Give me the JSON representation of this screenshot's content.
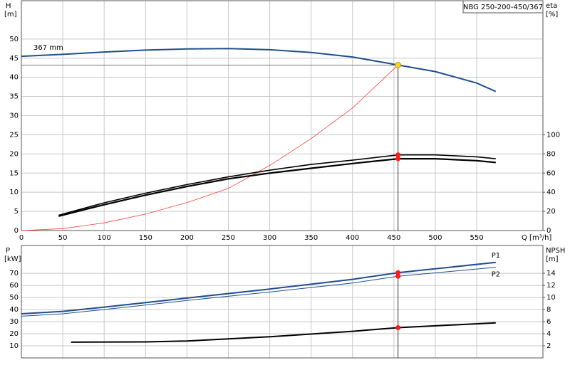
{
  "chart_data": [
    {
      "type": "line",
      "title": "NBG 250-200-450/367",
      "curve_label": "367 mm",
      "y_label": "H",
      "y_unit": "[m]",
      "y2_label": "eta",
      "y2_unit": "[%]",
      "x_label": "Q [m³/h]",
      "xlim": [
        0,
        630
      ],
      "xticks": [
        0,
        50,
        100,
        150,
        200,
        250,
        300,
        350,
        400,
        450,
        500,
        550
      ],
      "ylim": [
        0,
        60
      ],
      "yticks": [
        0,
        5,
        10,
        15,
        20,
        25,
        30,
        35,
        40,
        45,
        50
      ],
      "y2lim": [
        0,
        240
      ],
      "y2ticks": [
        0,
        20,
        40,
        60,
        80,
        100
      ],
      "grid": true,
      "duty_point": {
        "x": 455,
        "y": 43.2,
        "color": "#ffd21f"
      },
      "series": [
        {
          "color": "#1f4e8c",
          "line_width": 2,
          "x": [
            0,
            50,
            100,
            150,
            200,
            250,
            300,
            350,
            400,
            455,
            500,
            550,
            573
          ],
          "values": [
            45.5,
            46,
            46.6,
            47.1,
            47.4,
            47.5,
            47.2,
            46.5,
            45.3,
            43.2,
            41.5,
            38.5,
            36.3
          ]
        },
        {
          "color": "#ff3b30",
          "line_width": 0.8,
          "x": [
            0,
            50,
            100,
            150,
            200,
            250,
            300,
            350,
            400,
            455
          ],
          "values": [
            0,
            0.5,
            2,
            4.3,
            7.3,
            11,
            17,
            24,
            32,
            43.2
          ]
        },
        {
          "color": "#000000",
          "line_width": 1.6,
          "axis": "y2",
          "marker_color": "#ff1a1a",
          "x": [
            45,
            100,
            150,
            200,
            250,
            300,
            350,
            400,
            455,
            500,
            550,
            573
          ],
          "values": [
            16,
            29,
            39,
            48,
            56,
            63,
            69,
            73.5,
            79,
            79,
            77,
            75
          ]
        },
        {
          "color": "#000000",
          "line_width": 2.2,
          "axis": "y2",
          "marker_color": "#ff1a1a",
          "x": [
            45,
            100,
            150,
            200,
            250,
            300,
            350,
            400,
            455,
            500,
            550,
            573
          ],
          "values": [
            15,
            27,
            37,
            46,
            54,
            60,
            65,
            70,
            75,
            75,
            73,
            71
          ]
        }
      ]
    },
    {
      "type": "line",
      "y_label": "P",
      "y_unit": "[kW]",
      "y2_label": "NPSH",
      "y2_unit": "[m]",
      "xlim": [
        0,
        630
      ],
      "xticks": [
        0,
        50,
        100,
        150,
        200,
        250,
        300,
        350,
        400,
        450,
        500,
        550
      ],
      "ylim": [
        0,
        93
      ],
      "yticks": [
        10,
        20,
        30,
        40,
        50,
        60,
        70
      ],
      "y2lim": [
        0,
        18.6
      ],
      "y2ticks": [
        2,
        4,
        6,
        8,
        10,
        12,
        14
      ],
      "grid": true,
      "duty_point": {
        "x": 455
      },
      "series": [
        {
          "name": "P1",
          "color": "#1f4e8c",
          "line_width": 2,
          "marker_color": "#ff1a1a",
          "x": [
            0,
            50,
            100,
            200,
            300,
            400,
            455,
            573
          ],
          "values": [
            36.5,
            38.5,
            42,
            49.5,
            57,
            65,
            70.5,
            79
          ]
        },
        {
          "name": "P2",
          "color": "#1f4e8c",
          "line_width": 1,
          "marker_color": "#ff1a1a",
          "x": [
            0,
            50,
            100,
            200,
            300,
            400,
            455,
            573
          ],
          "values": [
            34.5,
            36.5,
            40,
            47.5,
            54.5,
            62,
            67.5,
            75
          ]
        },
        {
          "color": "#000000",
          "line_width": 2,
          "axis": "y2",
          "marker_color": "#ff1a1a",
          "x": [
            60,
            150,
            200,
            300,
            400,
            455,
            573
          ],
          "values": [
            2.6,
            2.65,
            2.8,
            3.5,
            4.4,
            5.0,
            5.8
          ]
        }
      ]
    }
  ]
}
